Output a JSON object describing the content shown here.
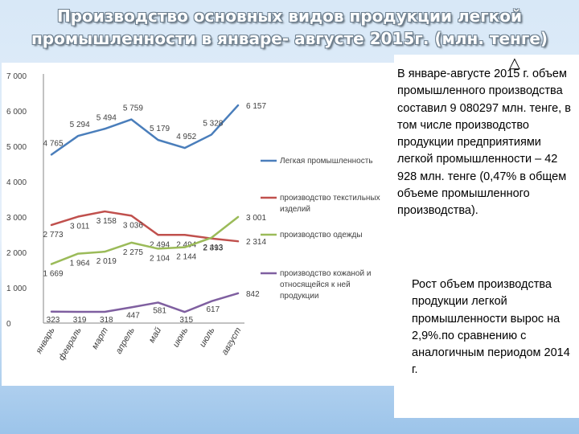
{
  "title_line1": "Производство основных видов продукции легкой",
  "title_line2": "промышленности в январе- августе 2015г. (млн. тенге)",
  "side_text": {
    "paragraph1": "В январе-августе 2015 г. объем промышленного производства составил 9 080297 млн. тенге,  в том числе производство продукции предприятиями легкой промышленности – 42 928 млн. тенге  (0,47% в общем объеме промышленного производства).",
    "paragraph2": "Рост объем производства продукции легкой промышленности вырос на 2,9%.по сравнению с аналогичным периодом 2014 г."
  },
  "chart_data": {
    "type": "line",
    "categories": [
      "январь",
      "февраль",
      "март",
      "апрель",
      "май",
      "июнь",
      "июль",
      "август"
    ],
    "ylim": [
      0,
      7000
    ],
    "yticks": [
      "0",
      "1 000",
      "2 000",
      "3 000",
      "4 000",
      "5 000",
      "6 000",
      "7 000"
    ],
    "grid": false,
    "legend_position": "right",
    "series": [
      {
        "name": "Легкая промышленность",
        "color": "#4a7ebb",
        "values": [
          4765,
          5294,
          5494,
          5759,
          5179,
          4952,
          5328,
          6157
        ],
        "labels": [
          "4 765",
          "5 294",
          "5 494",
          "5 759",
          "5 179",
          "4 952",
          "5 328",
          "6 157"
        ]
      },
      {
        "name": "производство текстильных изделий",
        "color": "#c0504d",
        "values": [
          2773,
          3011,
          3158,
          3036,
          2494,
          2494,
          2393,
          2314
        ],
        "labels": [
          "2 773",
          "3 011",
          "3 158",
          "3 036",
          "2 494",
          "2 494",
          "2 393",
          "2 314"
        ]
      },
      {
        "name": "производство одежды",
        "color": "#9bbb59",
        "values": [
          1669,
          1964,
          2019,
          2275,
          2104,
          2144,
          2413,
          3001
        ],
        "labels": [
          "1 669",
          "1 964",
          "2 019",
          "2 275",
          "2 104",
          "2 144",
          "2 413",
          "3 001"
        ]
      },
      {
        "name": "производство кожаной и относящейся к ней продукции",
        "color": "#7f5fa0",
        "values": [
          323,
          319,
          318,
          447,
          581,
          315,
          617,
          842
        ],
        "labels": [
          "323",
          "319",
          "318",
          "447",
          "581",
          "315",
          "617",
          "842"
        ]
      }
    ]
  }
}
